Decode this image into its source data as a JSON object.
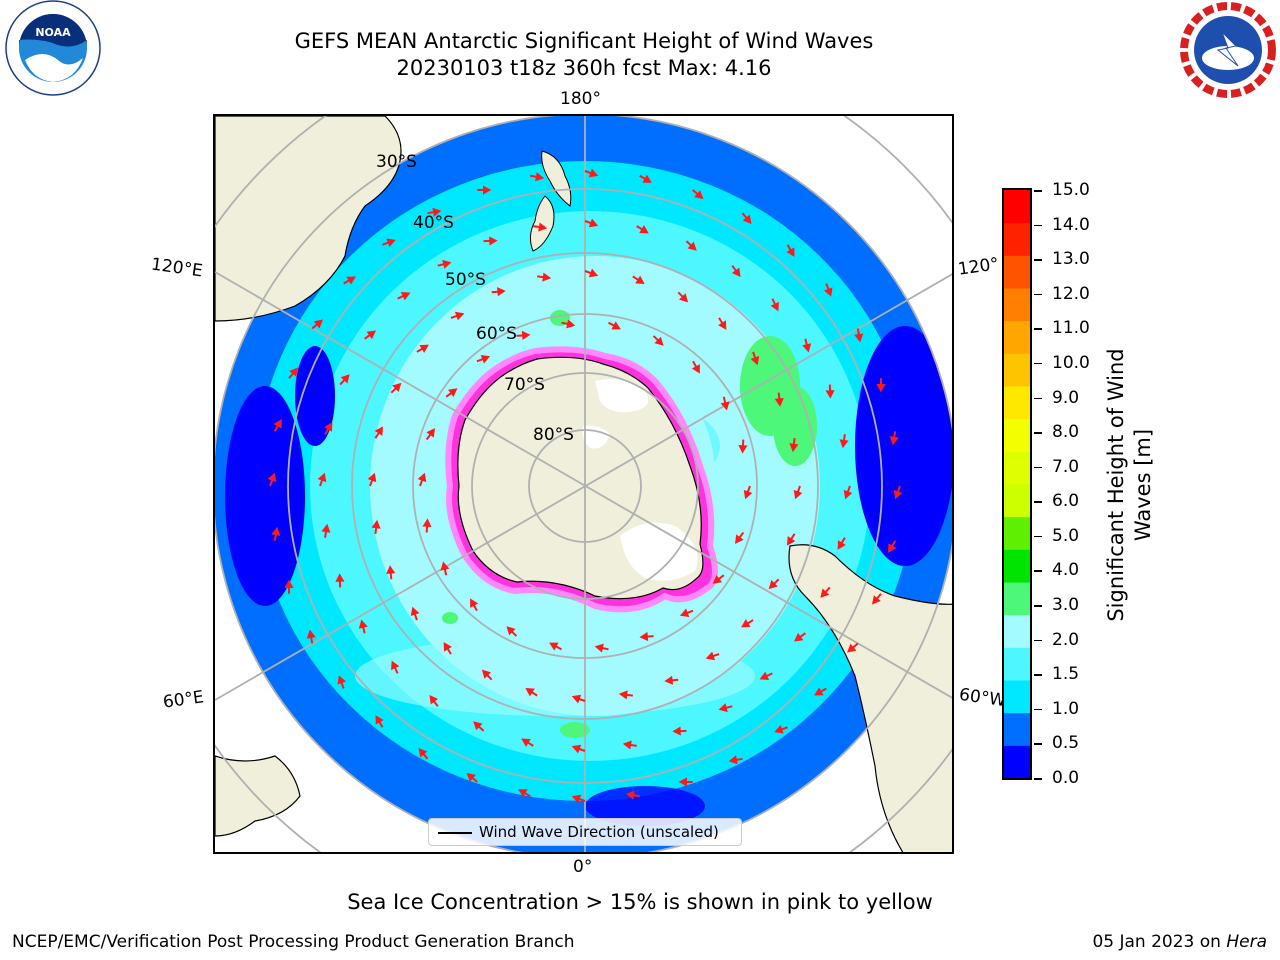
{
  "title_line1": "GEFS MEAN Antarctic Significant Height of Wind Waves",
  "title_line2": "20230103 t18z 360h fcst   Max: 4.16",
  "lon_labels": {
    "top": "180°",
    "bottom": "0°",
    "upper_left": "120°E",
    "lower_left": "60°E",
    "upper_right": "120°",
    "lower_right": "60°W"
  },
  "lat_labels": [
    "30°S",
    "40°S",
    "50°S",
    "60°S",
    "70°S",
    "80°S"
  ],
  "legend_label": "Wind Wave Direction (unscaled)",
  "colorbar": {
    "label": "Significant Height of Wind Waves [m]",
    "ticks": [
      "15.0",
      "14.0",
      "13.0",
      "12.0",
      "11.0",
      "10.0",
      "9.0",
      "8.0",
      "7.0",
      "6.0",
      "5.0",
      "4.0",
      "3.0",
      "2.0",
      "1.5",
      "1.0",
      "0.5",
      "0.0"
    ],
    "colors": [
      "#0000ff",
      "#006eff",
      "#00e8ff",
      "#4cf7ff",
      "#a3fbff",
      "#4cf77a",
      "#00e500",
      "#5ef000",
      "#ccff00",
      "#ddff00",
      "#f2ff00",
      "#ffe800",
      "#ffc400",
      "#ffa600",
      "#ff8000",
      "#ff5300",
      "#ff2200",
      "#ff0000"
    ]
  },
  "footer_note": "Sea Ice Concentration > 15% is shown in pink to yellow",
  "footer_left": "NCEP/EMC/Verification Post Processing Product Generation Branch",
  "footer_right_date": "05 Jan 2023 on ",
  "footer_right_machine": "Hera",
  "logos": {
    "left": "NOAA",
    "right": "NATIONAL WEATHER SERVICE"
  }
}
